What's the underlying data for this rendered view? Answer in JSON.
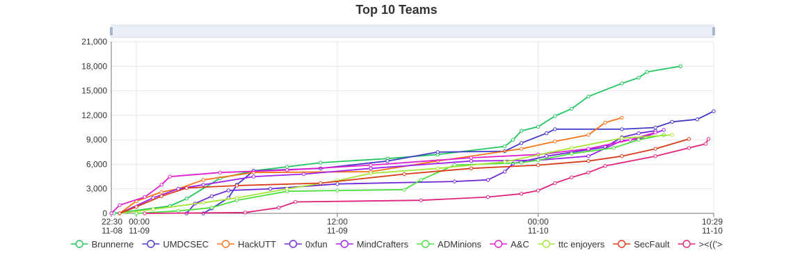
{
  "chart_data": {
    "type": "line",
    "title": "Top 10 Teams",
    "xlabel": "",
    "ylabel": "",
    "ylim": [
      0,
      21000
    ],
    "y_ticks": [
      "0",
      "3,000",
      "6,000",
      "9,000",
      "12,000",
      "15,000",
      "18,000",
      "21,000"
    ],
    "y_tick_values": [
      0,
      3000,
      6000,
      9000,
      12000,
      15000,
      18000,
      21000
    ],
    "x_range": [
      "2023-11-08 22:30",
      "2023-11-10 10:29"
    ],
    "x_ticks": [
      {
        "t": "2023-11-08 22:30",
        "line1": "22:30",
        "line2": "11-08"
      },
      {
        "t": "2023-11-09 00:00",
        "line1": "00:00",
        "line2": "11-09"
      },
      {
        "t": "2023-11-09 12:00",
        "line1": "12:00",
        "line2": "11-09"
      },
      {
        "t": "2023-11-10 00:00",
        "line1": "00:00",
        "line2": "11-10"
      },
      {
        "t": "2023-11-10 10:29",
        "line1": "10:29",
        "line2": "11-10"
      }
    ],
    "grid": true,
    "legend_position": "bottom",
    "data_zoom_slider": true,
    "series": [
      {
        "name": "Brunnerne",
        "color": "#22c55e",
        "points": [
          [
            "2023-11-08 22:40",
            0
          ],
          [
            "2023-11-09 02:00",
            900
          ],
          [
            "2023-11-09 03:00",
            1800
          ],
          [
            "2023-11-09 05:00",
            4300
          ],
          [
            "2023-11-09 07:00",
            5200
          ],
          [
            "2023-11-09 09:00",
            5700
          ],
          [
            "2023-11-09 11:00",
            6200
          ],
          [
            "2023-11-09 15:00",
            6700
          ],
          [
            "2023-11-09 18:00",
            7200
          ],
          [
            "2023-11-09 22:00",
            8200
          ],
          [
            "2023-11-09 22:30",
            9000
          ],
          [
            "2023-11-09 23:00",
            10100
          ],
          [
            "2023-11-10 00:00",
            10600
          ],
          [
            "2023-11-10 01:00",
            11900
          ],
          [
            "2023-11-10 02:00",
            12800
          ],
          [
            "2023-11-10 03:00",
            14300
          ],
          [
            "2023-11-10 05:00",
            15900
          ],
          [
            "2023-11-10 06:00",
            16600
          ],
          [
            "2023-11-10 06:30",
            17300
          ],
          [
            "2023-11-10 08:30",
            18000
          ]
        ]
      },
      {
        "name": "UMDCSEC",
        "color": "#4338ca",
        "points": [
          [
            "2023-11-09 04:00",
            0
          ],
          [
            "2023-11-09 04:30",
            600
          ],
          [
            "2023-11-09 05:30",
            1900
          ],
          [
            "2023-11-09 06:00",
            3500
          ],
          [
            "2023-11-09 07:00",
            5200
          ],
          [
            "2023-11-09 11:00",
            5500
          ],
          [
            "2023-11-09 15:00",
            6400
          ],
          [
            "2023-11-09 18:00",
            7500
          ],
          [
            "2023-11-09 22:00",
            7600
          ],
          [
            "2023-11-09 23:00",
            8600
          ],
          [
            "2023-11-10 00:30",
            9800
          ],
          [
            "2023-11-10 01:00",
            10300
          ],
          [
            "2023-11-10 05:00",
            10300
          ],
          [
            "2023-11-10 07:00",
            10500
          ],
          [
            "2023-11-10 08:00",
            11200
          ],
          [
            "2023-11-10 09:30",
            11500
          ],
          [
            "2023-11-10 10:29",
            12500
          ]
        ]
      },
      {
        "name": "HackUTT",
        "color": "#f97316",
        "points": [
          [
            "2023-11-08 23:00",
            0
          ],
          [
            "2023-11-09 00:00",
            1500
          ],
          [
            "2023-11-09 01:30",
            2600
          ],
          [
            "2023-11-09 02:30",
            3000
          ],
          [
            "2023-11-09 04:00",
            4100
          ],
          [
            "2023-11-09 07:00",
            5000
          ],
          [
            "2023-11-09 14:00",
            5100
          ],
          [
            "2023-11-09 18:00",
            6400
          ],
          [
            "2023-11-09 23:00",
            7900
          ],
          [
            "2023-11-10 01:00",
            8800
          ],
          [
            "2023-11-10 03:00",
            9600
          ],
          [
            "2023-11-10 04:00",
            11100
          ],
          [
            "2023-11-10 05:00",
            11700
          ]
        ]
      },
      {
        "name": "0xfun",
        "color": "#6d28d9",
        "points": [
          [
            "2023-11-09 03:00",
            0
          ],
          [
            "2023-11-09 03:30",
            1200
          ],
          [
            "2023-11-09 04:30",
            2100
          ],
          [
            "2023-11-09 05:30",
            2800
          ],
          [
            "2023-11-09 08:00",
            3000
          ],
          [
            "2023-11-09 12:00",
            3600
          ],
          [
            "2023-11-09 19:00",
            3900
          ],
          [
            "2023-11-09 21:00",
            4100
          ],
          [
            "2023-11-09 22:00",
            5100
          ],
          [
            "2023-11-09 22:30",
            6100
          ],
          [
            "2023-11-10 00:30",
            7000
          ],
          [
            "2023-11-10 03:00",
            7800
          ],
          [
            "2023-11-10 04:00",
            8100
          ],
          [
            "2023-11-10 05:00",
            9300
          ],
          [
            "2023-11-10 06:00",
            9800
          ],
          [
            "2023-11-10 07:00",
            10100
          ]
        ]
      },
      {
        "name": "MindCrafters",
        "color": "#a020f0",
        "points": [
          [
            "2023-11-08 23:00",
            0
          ],
          [
            "2023-11-09 01:00",
            1900
          ],
          [
            "2023-11-09 02:30",
            3000
          ],
          [
            "2023-11-09 04:00",
            3500
          ],
          [
            "2023-11-09 07:00",
            4500
          ],
          [
            "2023-11-09 10:00",
            4800
          ],
          [
            "2023-11-09 14:00",
            5500
          ],
          [
            "2023-11-09 20:00",
            6400
          ],
          [
            "2023-11-10 00:00",
            6500
          ],
          [
            "2023-11-10 03:00",
            7000
          ],
          [
            "2023-11-10 05:00",
            8900
          ],
          [
            "2023-11-10 06:00",
            9100
          ],
          [
            "2023-11-10 07:30",
            10200
          ]
        ]
      },
      {
        "name": "ADMinions",
        "color": "#4ade3c",
        "points": [
          [
            "2023-11-09 00:00",
            0
          ],
          [
            "2023-11-09 02:30",
            300
          ],
          [
            "2023-11-09 04:30",
            700
          ],
          [
            "2023-11-09 06:00",
            1600
          ],
          [
            "2023-11-09 09:00",
            2700
          ],
          [
            "2023-11-09 12:00",
            2800
          ],
          [
            "2023-11-09 16:00",
            2900
          ],
          [
            "2023-11-09 17:00",
            4100
          ],
          [
            "2023-11-09 19:00",
            5900
          ],
          [
            "2023-11-09 23:00",
            6200
          ],
          [
            "2023-11-10 00:00",
            6500
          ],
          [
            "2023-11-10 02:00",
            7300
          ],
          [
            "2023-11-10 04:30",
            8000
          ],
          [
            "2023-11-10 06:00",
            9000
          ],
          [
            "2023-11-10 07:30",
            9600
          ]
        ]
      },
      {
        "name": "A&C",
        "color": "#e11ecf",
        "points": [
          [
            "2023-11-08 22:30",
            0
          ],
          [
            "2023-11-08 23:00",
            1000
          ],
          [
            "2023-11-09 00:30",
            2000
          ],
          [
            "2023-11-09 01:30",
            3500
          ],
          [
            "2023-11-09 02:00",
            4500
          ],
          [
            "2023-11-09 05:00",
            5000
          ],
          [
            "2023-11-09 09:00",
            5300
          ],
          [
            "2023-11-09 14:00",
            5900
          ],
          [
            "2023-11-09 20:00",
            6800
          ],
          [
            "2023-11-10 00:00",
            7200
          ],
          [
            "2023-11-10 03:00",
            7900
          ],
          [
            "2023-11-10 05:30",
            9000
          ],
          [
            "2023-11-10 07:00",
            9900
          ]
        ]
      },
      {
        "name": "ttc enjoyers",
        "color": "#a3e635",
        "points": [
          [
            "2023-11-08 23:00",
            0
          ],
          [
            "2023-11-09 01:00",
            500
          ],
          [
            "2023-11-09 04:00",
            1300
          ],
          [
            "2023-11-09 06:00",
            1900
          ],
          [
            "2023-11-09 09:00",
            3000
          ],
          [
            "2023-11-09 12:00",
            4000
          ],
          [
            "2023-11-09 14:00",
            4900
          ],
          [
            "2023-11-09 18:00",
            5500
          ],
          [
            "2023-11-09 22:00",
            6300
          ],
          [
            "2023-11-10 02:00",
            8000
          ],
          [
            "2023-11-10 05:00",
            9200
          ],
          [
            "2023-11-10 08:00",
            9600
          ]
        ]
      },
      {
        "name": "SecFault",
        "color": "#d93a17",
        "points": [
          [
            "2023-11-08 23:00",
            0
          ],
          [
            "2023-11-09 00:00",
            800
          ],
          [
            "2023-11-09 01:30",
            2100
          ],
          [
            "2023-11-09 03:00",
            3100
          ],
          [
            "2023-11-09 06:00",
            3400
          ],
          [
            "2023-11-09 11:00",
            3700
          ],
          [
            "2023-11-09 16:00",
            4800
          ],
          [
            "2023-11-09 20:00",
            5500
          ],
          [
            "2023-11-10 00:00",
            5900
          ],
          [
            "2023-11-10 03:00",
            6400
          ],
          [
            "2023-11-10 05:00",
            7000
          ],
          [
            "2023-11-10 07:00",
            7900
          ],
          [
            "2023-11-10 09:00",
            9100
          ]
        ]
      },
      {
        "name": "><(('>",
        "color": "#e0227e",
        "points": [
          [
            "2023-11-09 00:30",
            0
          ],
          [
            "2023-11-09 06:30",
            100
          ],
          [
            "2023-11-09 08:30",
            700
          ],
          [
            "2023-11-09 09:30",
            1400
          ],
          [
            "2023-11-09 17:00",
            1600
          ],
          [
            "2023-11-09 21:00",
            2000
          ],
          [
            "2023-11-09 23:00",
            2400
          ],
          [
            "2023-11-10 00:00",
            2800
          ],
          [
            "2023-11-10 01:00",
            3700
          ],
          [
            "2023-11-10 02:00",
            4400
          ],
          [
            "2023-11-10 03:00",
            5000
          ],
          [
            "2023-11-10 04:00",
            5800
          ],
          [
            "2023-11-10 07:00",
            7000
          ],
          [
            "2023-11-10 09:00",
            8000
          ],
          [
            "2023-11-10 10:00",
            8500
          ],
          [
            "2023-11-10 10:10",
            9100
          ]
        ]
      }
    ]
  }
}
